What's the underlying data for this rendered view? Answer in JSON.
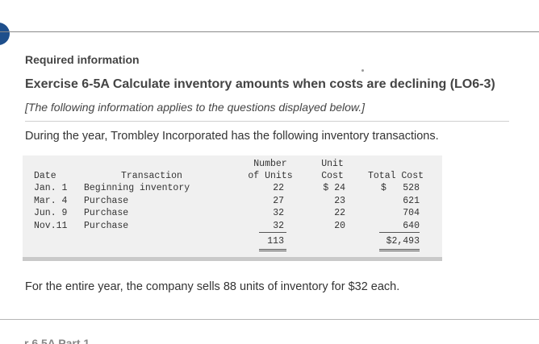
{
  "header": {
    "required_info": "Required information",
    "exercise_title": "Exercise 6-5A Calculate inventory amounts when costs are declining (LO6-3)",
    "subtitle": "[The following information applies to the questions displayed below.]"
  },
  "intro": "During the year, Trombley Incorporated has the following inventory transactions.",
  "table": {
    "headers": {
      "date": "Date",
      "transaction": "Transaction",
      "units_line1": "Number",
      "units_line2": "of Units",
      "cost_line1": "Unit",
      "cost_line2": "Cost",
      "total": "Total Cost"
    },
    "rows": [
      {
        "date": "Jan. 1",
        "transaction": "Beginning inventory",
        "units": "22",
        "cost": "$ 24",
        "total_prefix": "$",
        "total": "528"
      },
      {
        "date": "Mar. 4",
        "transaction": "Purchase",
        "units": "27",
        "cost": "23",
        "total_prefix": "",
        "total": "621"
      },
      {
        "date": "Jun. 9",
        "transaction": "Purchase",
        "units": "32",
        "cost": "22",
        "total_prefix": "",
        "total": "704"
      },
      {
        "date": "Nov.11",
        "transaction": "Purchase",
        "units": "32",
        "cost": "20",
        "total_prefix": "",
        "total": "640"
      }
    ],
    "totals": {
      "units": "113",
      "total": "$2,493"
    }
  },
  "closing": "For the entire year, the company sells 88 units of inventory for $32 each.",
  "cut_off_text": "r    6 5A Part 1",
  "colors": {
    "tab_accent": "#1e4f8c",
    "table_bg": "#f0f0f0"
  }
}
